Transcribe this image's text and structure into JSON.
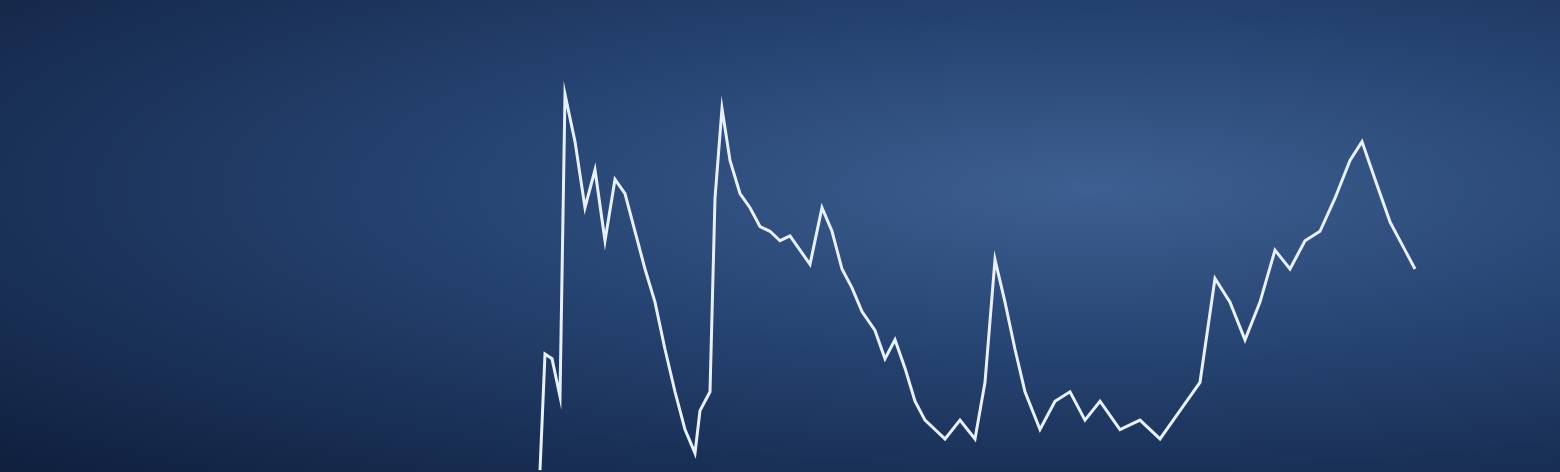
{
  "chart_data": {
    "type": "line",
    "x": [
      540,
      545,
      552,
      560,
      565,
      575,
      585,
      595,
      605,
      615,
      625,
      635,
      645,
      655,
      665,
      675,
      685,
      695,
      700,
      710,
      715,
      722,
      730,
      740,
      750,
      760,
      770,
      780,
      790,
      800,
      810,
      822,
      832,
      842,
      852,
      862,
      875,
      885,
      895,
      905,
      915,
      925,
      935,
      945,
      960,
      975,
      985,
      995,
      1005,
      1015,
      1025,
      1040,
      1055,
      1070,
      1085,
      1100,
      1120,
      1140,
      1160,
      1180,
      1200,
      1215,
      1230,
      1245,
      1260,
      1275,
      1290,
      1305,
      1320,
      1335,
      1350,
      1362,
      1375,
      1390,
      1405,
      1415
    ],
    "values": [
      0.4,
      25,
      24,
      16,
      80,
      70,
      56,
      64,
      49,
      62,
      59,
      51,
      43,
      36,
      26,
      17,
      9,
      4,
      13,
      17,
      58,
      77,
      66,
      59,
      56,
      52,
      51,
      49,
      50,
      47,
      44,
      56,
      51,
      43,
      39,
      34,
      30,
      24,
      28,
      22,
      15,
      11,
      9,
      7,
      11,
      7,
      19,
      45,
      36,
      26,
      17,
      9,
      15,
      17,
      11,
      15,
      9,
      11,
      7,
      13,
      19,
      41,
      36,
      28,
      36,
      47,
      43,
      49,
      51,
      58,
      66,
      70,
      62,
      53,
      47,
      43
    ],
    "xlim": [
      0,
      1560
    ],
    "ylim": [
      0,
      100
    ],
    "color": "#e8f0ff",
    "grid": false,
    "tick_labels": false
  }
}
